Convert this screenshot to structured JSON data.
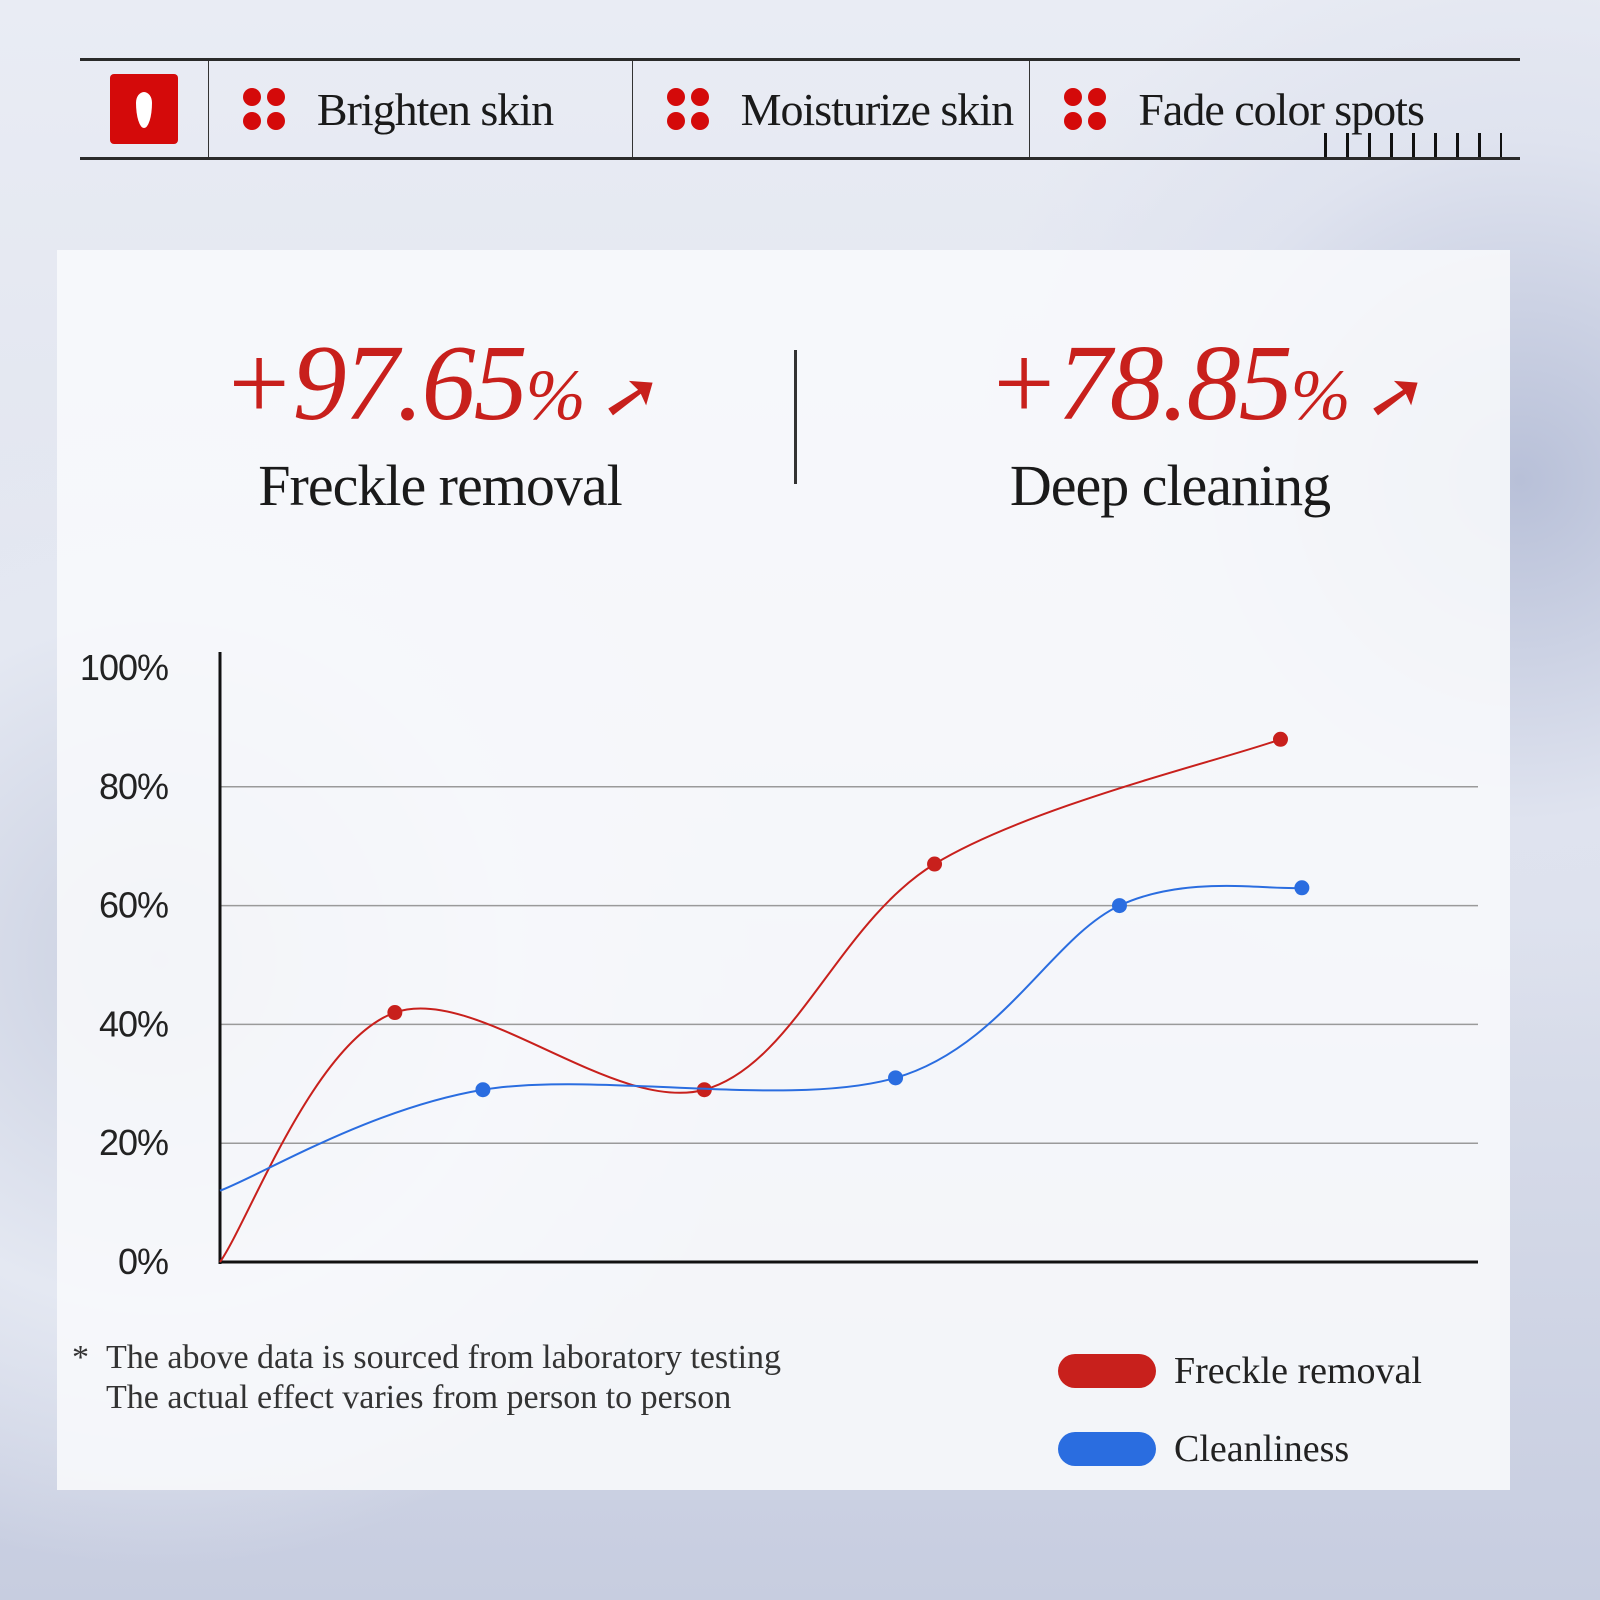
{
  "header": {
    "logo_icon": "red-droplet-logo",
    "features": [
      {
        "icon": "four-dots-icon",
        "label": "Brighten skin"
      },
      {
        "icon": "four-dots-icon",
        "label": "Moisturize skin"
      },
      {
        "icon": "four-dots-icon",
        "label": "Fade color spots"
      }
    ]
  },
  "stats": [
    {
      "value": "+97.65",
      "unit": "%",
      "icon": "arrow-up-icon",
      "label": "Freckle removal"
    },
    {
      "value": "+78.85",
      "unit": "%",
      "icon": "arrow-up-icon",
      "label": "Deep cleaning"
    }
  ],
  "footnote": {
    "marker": "*",
    "lines": [
      "The above data is sourced from laboratory testing",
      "The actual effect varies from person to person"
    ]
  },
  "colors": {
    "accent": "#c8201c",
    "red_series": "#c8201c",
    "blue_series": "#2a6de0"
  },
  "chart_data": {
    "type": "line",
    "smooth": true,
    "ylim": [
      0,
      100
    ],
    "xlim": [
      0,
      100
    ],
    "yticks": [
      "0%",
      "20%",
      "40%",
      "60%",
      "80%",
      "100%"
    ],
    "ytick_values": [
      0,
      20,
      40,
      60,
      80,
      100
    ],
    "grid": "horizontal",
    "legend_position": "bottom-right",
    "series": [
      {
        "name": "Freckle removal",
        "color": "#c8201c",
        "x": [
          0,
          13.9,
          38.5,
          56.8,
          84.3
        ],
        "y": [
          0,
          42,
          29,
          67,
          88
        ],
        "markers": [
          false,
          true,
          true,
          true,
          true
        ]
      },
      {
        "name": "Cleanliness",
        "color": "#2a6de0",
        "x": [
          0,
          20.9,
          53.7,
          71.5,
          86.0
        ],
        "y": [
          12,
          29,
          31,
          60,
          63
        ],
        "markers": [
          false,
          true,
          true,
          true,
          true
        ]
      }
    ]
  }
}
